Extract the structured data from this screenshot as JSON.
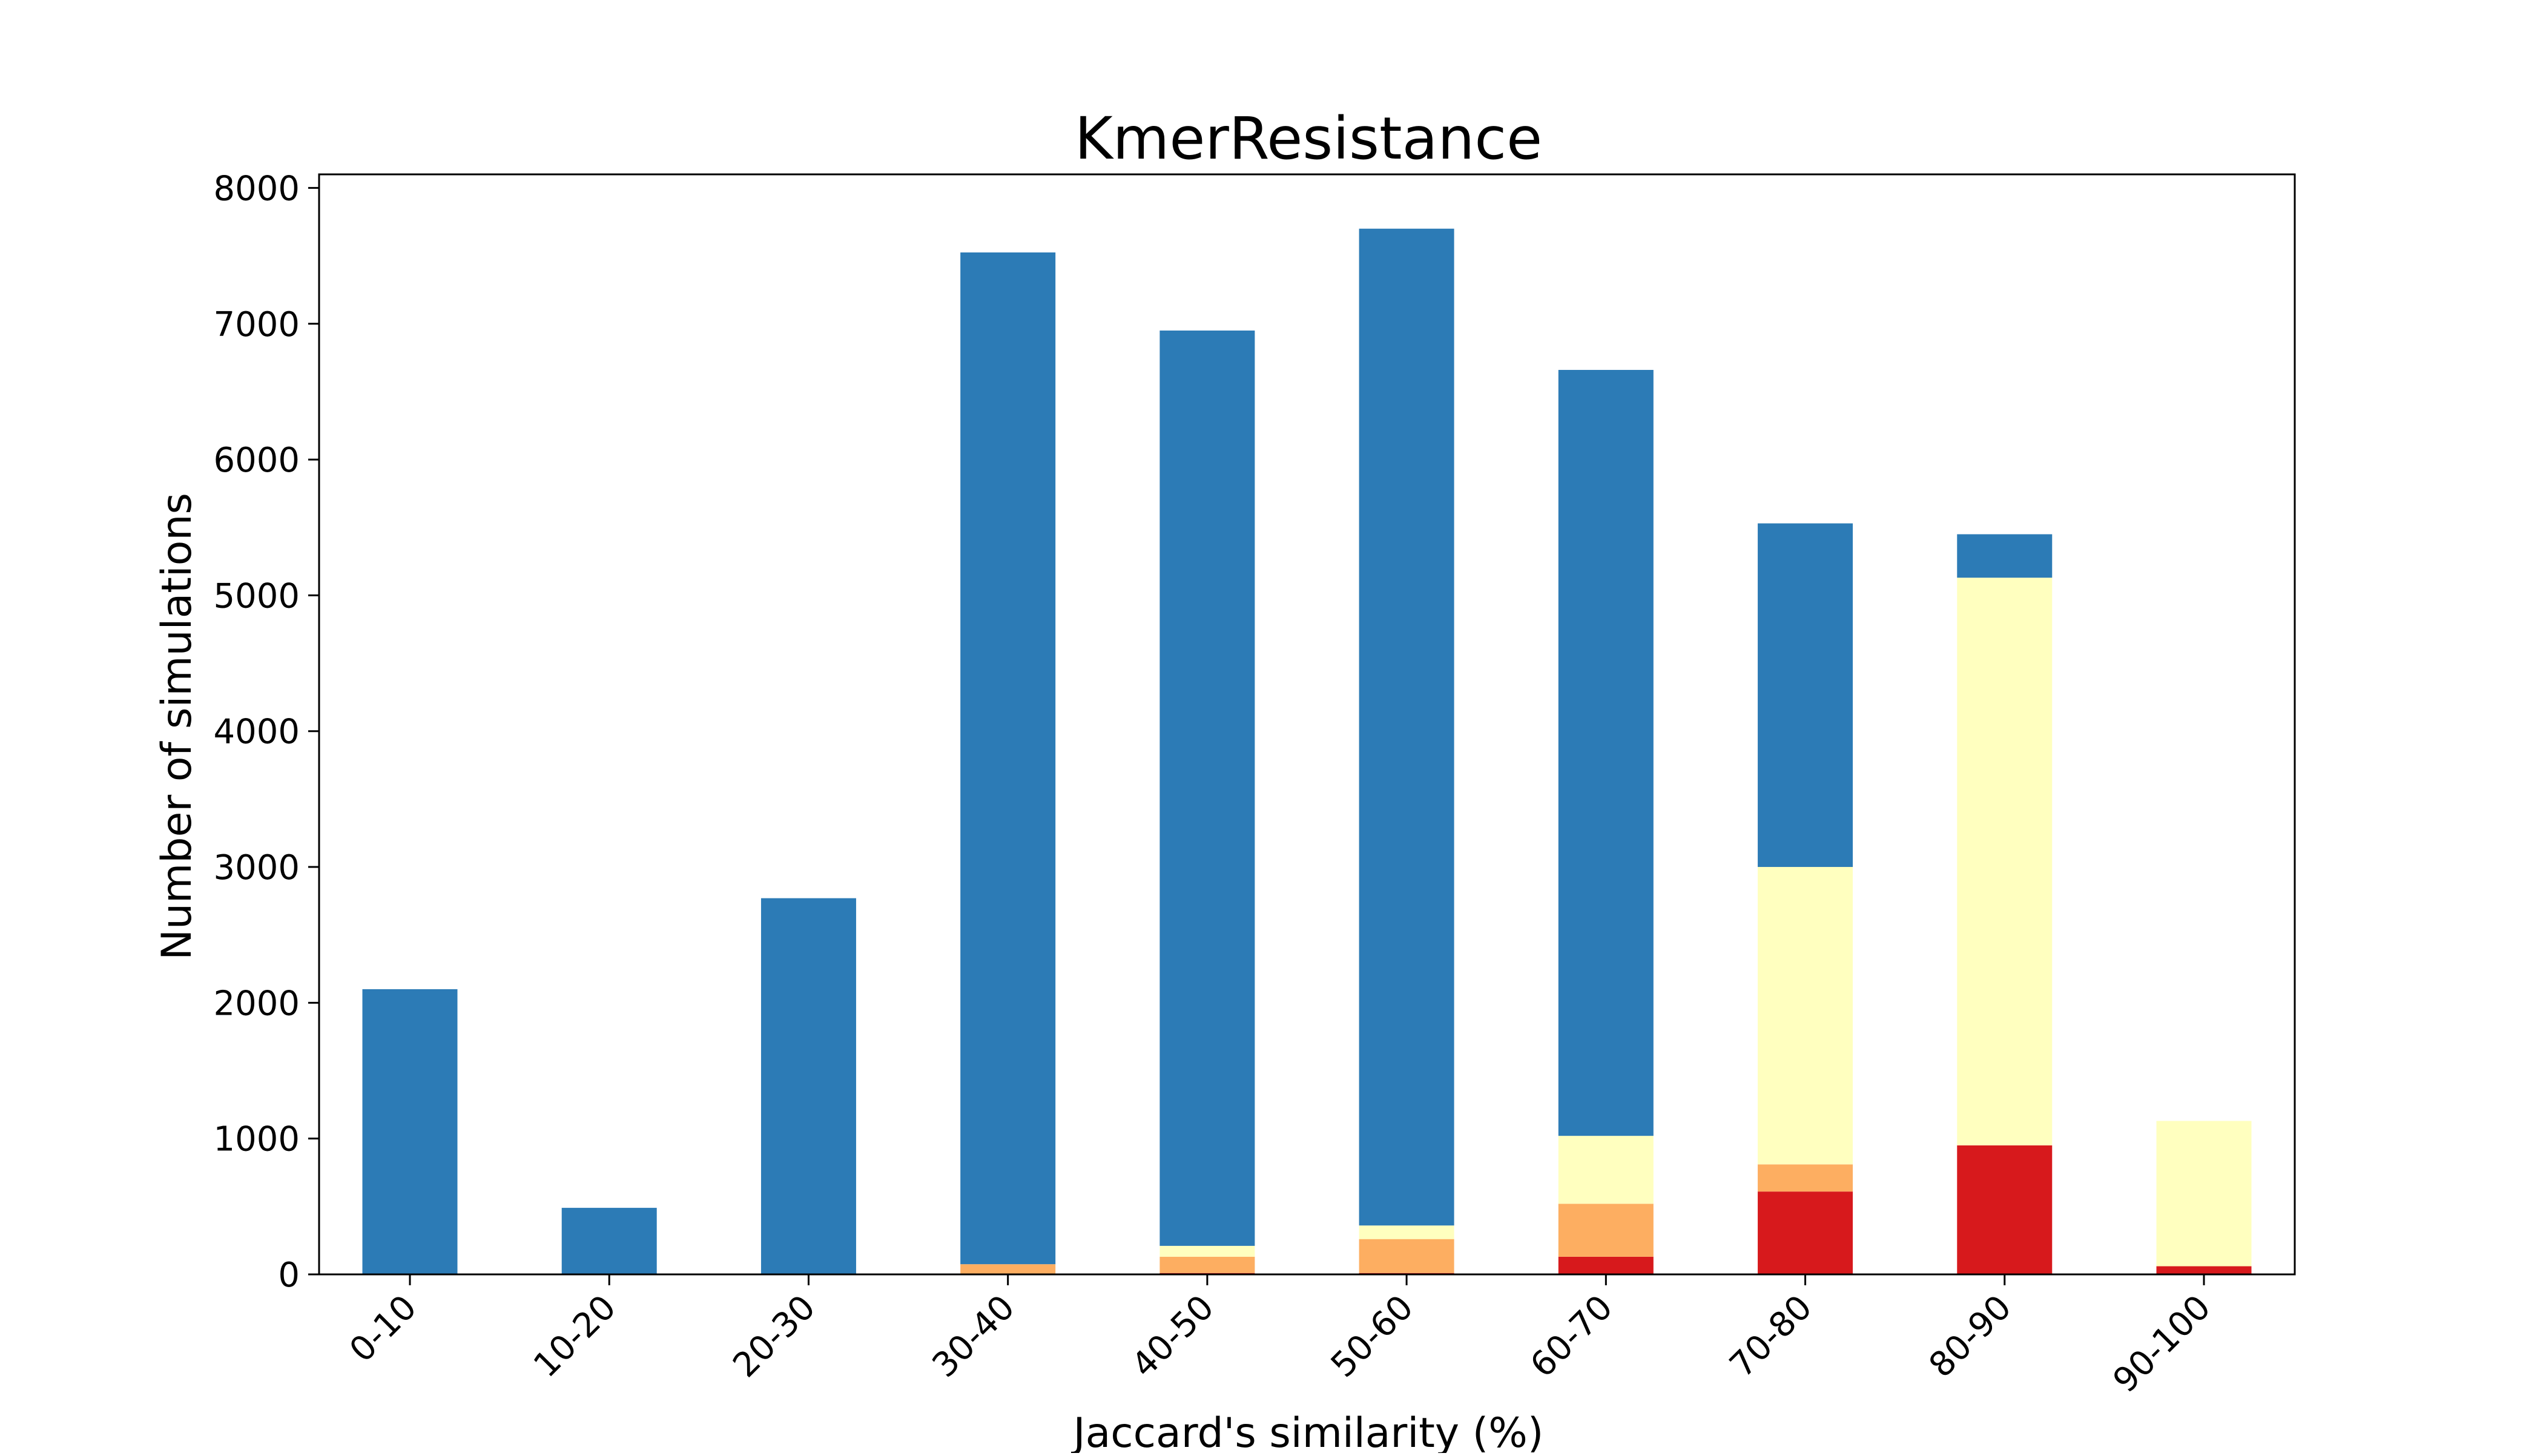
{
  "chart_data": {
    "type": "bar",
    "stacked": true,
    "title": "KmerResistance",
    "xlabel": "Jaccard's similarity (%)",
    "ylabel": "Number of simulations",
    "categories": [
      "0-10",
      "10-20",
      "20-30",
      "30-40",
      "40-50",
      "50-60",
      "60-70",
      "70-80",
      "80-90",
      "90-100"
    ],
    "ylim": [
      0,
      8100
    ],
    "yticks": [
      0,
      1000,
      2000,
      3000,
      4000,
      5000,
      6000,
      7000,
      8000
    ],
    "grid": false,
    "series": [
      {
        "color": "#d7191c",
        "values": [
          0,
          0,
          0,
          0,
          10,
          10,
          130,
          610,
          950,
          60
        ]
      },
      {
        "color": "#fdae61",
        "values": [
          0,
          0,
          0,
          75,
          120,
          250,
          390,
          200,
          0,
          0
        ]
      },
      {
        "color": "#ffffbf",
        "values": [
          0,
          0,
          0,
          0,
          80,
          100,
          500,
          2190,
          4180,
          1070
        ]
      },
      {
        "color": "#2c7bb6",
        "values": [
          2100,
          490,
          2770,
          7450,
          6740,
          7340,
          5640,
          2530,
          320,
          0
        ]
      }
    ]
  }
}
